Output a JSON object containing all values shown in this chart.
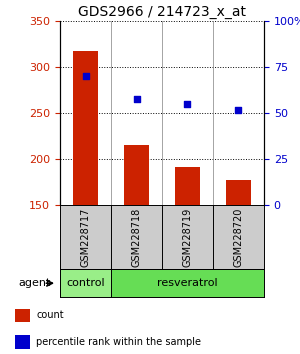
{
  "title": "GDS2966 / 214723_x_at",
  "samples": [
    "GSM228717",
    "GSM228718",
    "GSM228719",
    "GSM228720"
  ],
  "counts": [
    318,
    215,
    192,
    178
  ],
  "percentiles": [
    70,
    58,
    55,
    52
  ],
  "ylim_left": [
    150,
    350
  ],
  "ylim_right": [
    0,
    100
  ],
  "yticks_left": [
    150,
    200,
    250,
    300,
    350
  ],
  "yticks_right": [
    0,
    25,
    50,
    75,
    100
  ],
  "bar_color": "#cc2200",
  "dot_color": "#0000cc",
  "bar_bottom": 150,
  "control_color": "#99ee88",
  "resveratrol_color": "#66dd55",
  "sample_box_color": "#cccccc",
  "legend_count_label": "count",
  "legend_pct_label": "percentile rank within the sample",
  "title_fontsize": 10,
  "tick_fontsize": 8,
  "label_fontsize": 8,
  "sample_fontsize": 7,
  "group_fontsize": 8
}
